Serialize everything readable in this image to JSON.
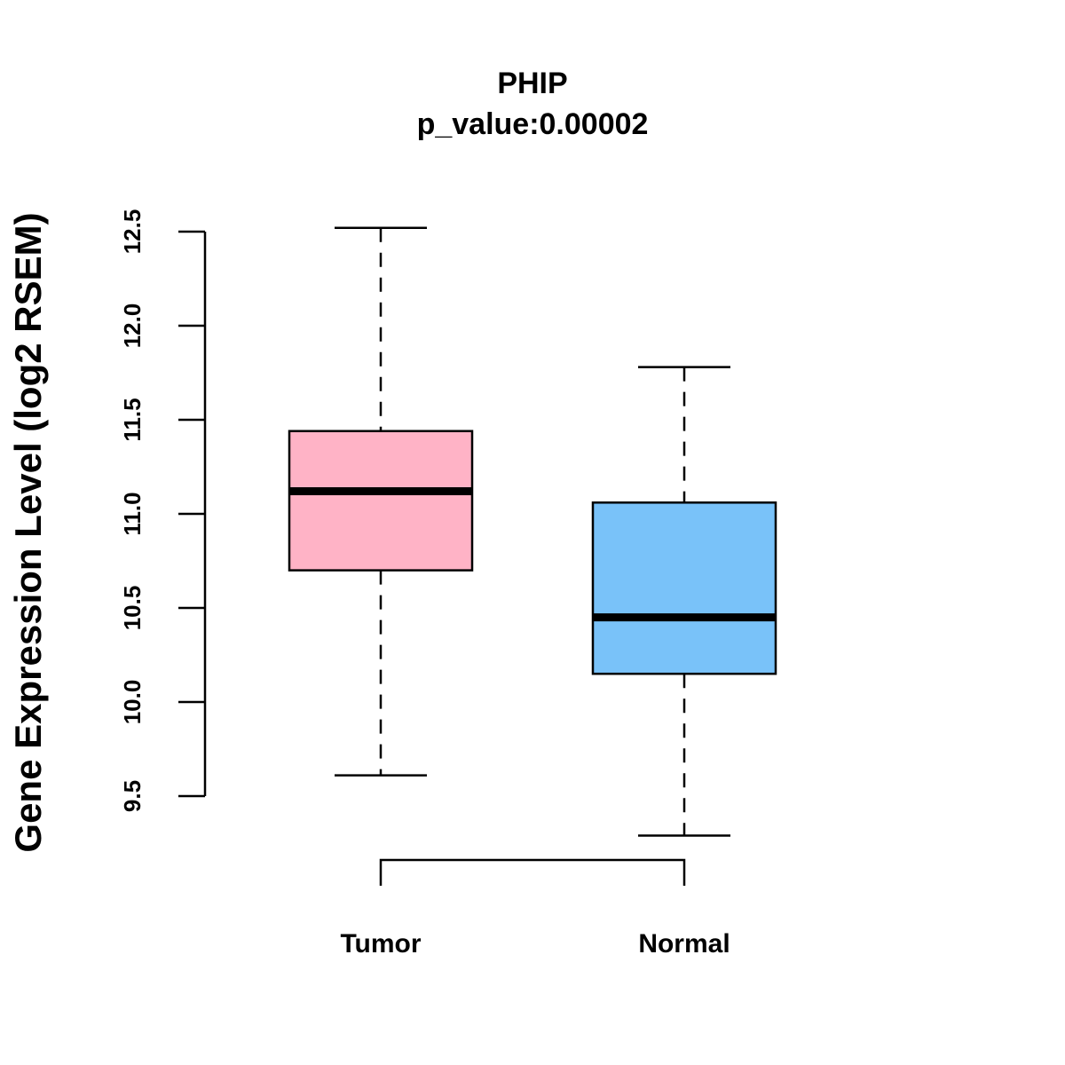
{
  "chart_data": {
    "type": "box",
    "title": "PHIP",
    "subtitle": "p_value:0.00002",
    "ylabel": "Gene Expression Level (log2 RSEM)",
    "xlabel": "",
    "ylim": [
      9.5,
      12.5
    ],
    "yticks": [
      "9.5",
      "10.0",
      "10.5",
      "11.0",
      "11.5",
      "12.0",
      "12.5"
    ],
    "grid": false,
    "categories": [
      "Tumor",
      "Normal"
    ],
    "series": [
      {
        "name": "Tumor",
        "min": 9.61,
        "q1": 10.7,
        "median": 11.12,
        "q3": 11.44,
        "max": 12.52,
        "color": "#FFB3C6"
      },
      {
        "name": "Normal",
        "min": 9.29,
        "q1": 10.15,
        "median": 10.45,
        "q3": 11.06,
        "max": 11.78,
        "color": "#79C2F9"
      }
    ],
    "comparison_bracket": [
      "Tumor",
      "Normal"
    ]
  }
}
